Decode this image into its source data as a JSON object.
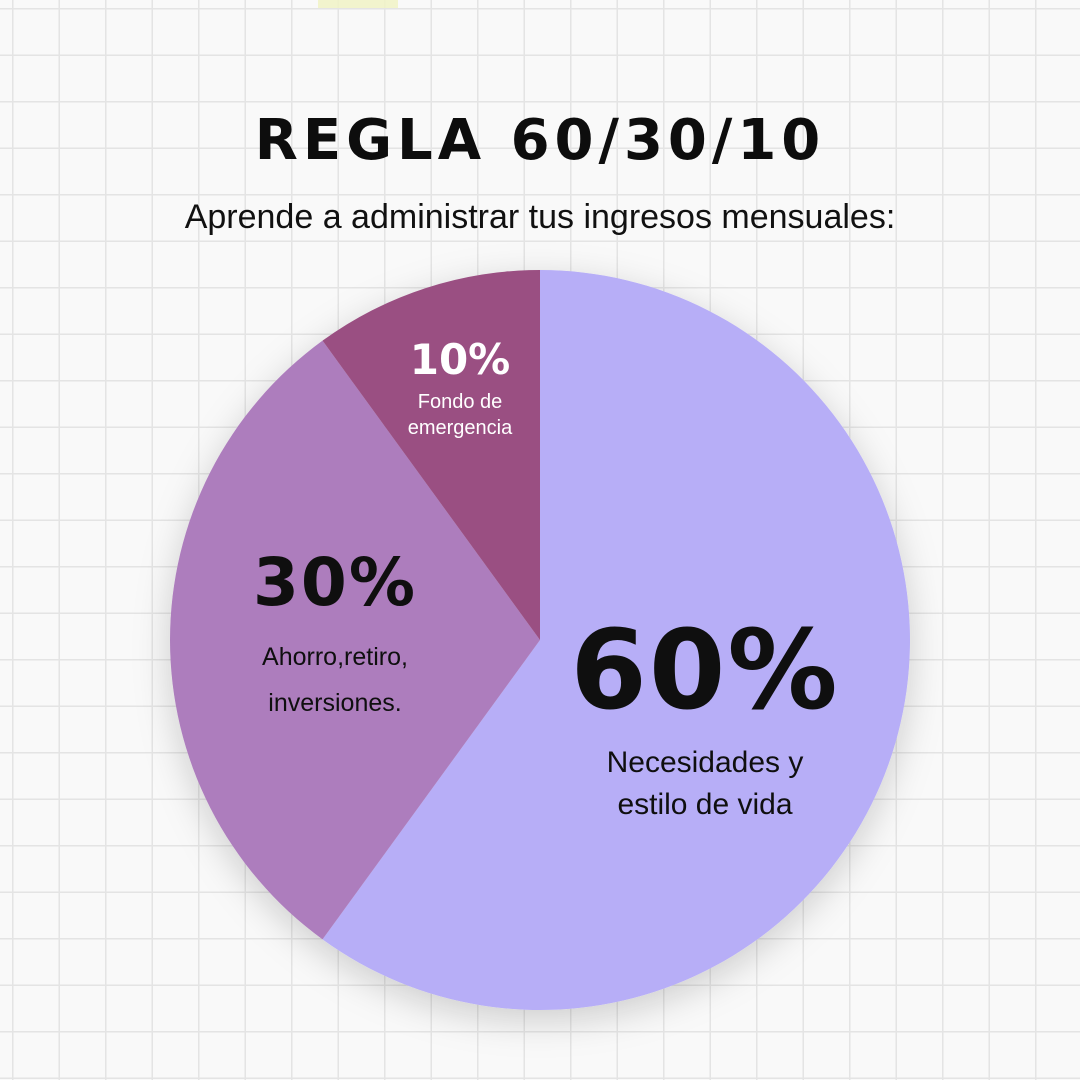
{
  "title": "REGLA 60/30/10",
  "subtitle": "Aprende a administrar tus ingresos mensuales:",
  "colors": {
    "necesidades": "#b7aef7",
    "ahorro": "#ad7dbd",
    "emergencia": "#9a4f82",
    "background": "#f9f9f9",
    "grid": "#e4e4e4"
  },
  "chart_data": {
    "type": "pie",
    "title": "REGLA 60/30/10",
    "slices": [
      {
        "label_pct": "60%",
        "label_desc_1": "Necesidades y",
        "label_desc_2": "estilo de vida",
        "value": 60,
        "color": "#b7aef7"
      },
      {
        "label_pct": "30%",
        "label_desc_1": "Ahorro,retiro,",
        "label_desc_2": "inversiones.",
        "value": 30,
        "color": "#ad7dbd"
      },
      {
        "label_pct": "10%",
        "label_desc_1": "Fondo de",
        "label_desc_2": "emergencia",
        "value": 10,
        "color": "#9a4f82"
      }
    ],
    "start_angle": "12 o'clock",
    "direction": "clockwise",
    "legend": "none"
  }
}
